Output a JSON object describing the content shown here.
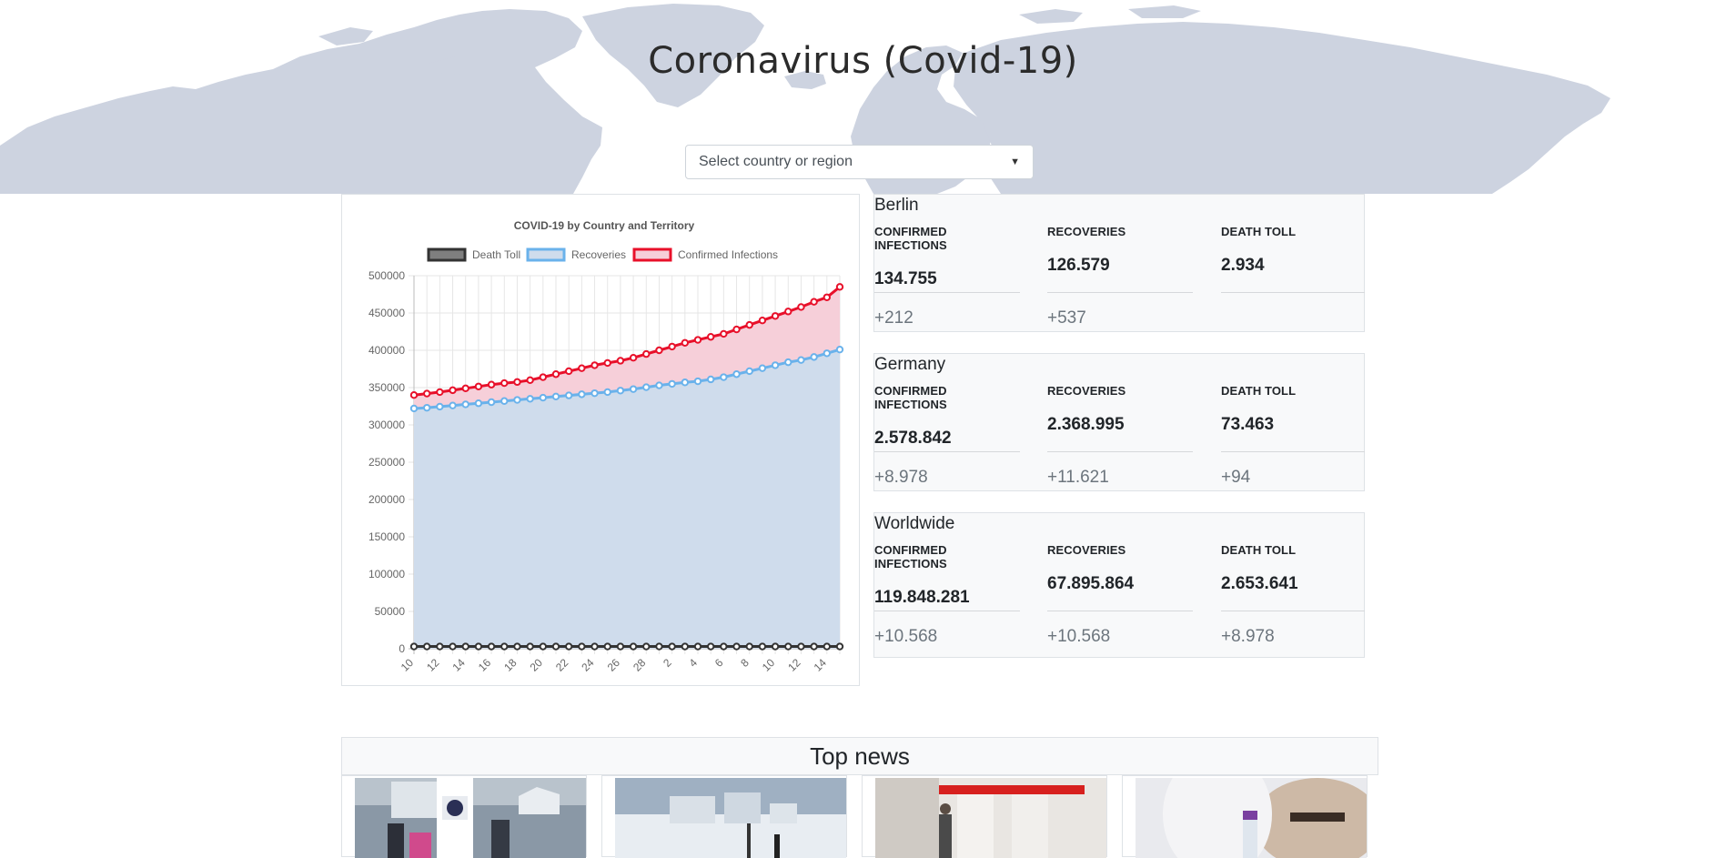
{
  "header": {
    "title": "Coronavirus (Covid-19)",
    "select_placeholder": "Select country or region"
  },
  "colors": {
    "map": "#cdd3e0",
    "death": "#333333",
    "recoveries": "#6ab2eb",
    "recoveries_fill": "#cfdcec",
    "confirmed": "#e8102a",
    "confirmed_fill": "#f6cfd9"
  },
  "chart_data": {
    "type": "line",
    "title": "COVID-19 by Country and Territory",
    "legend_position": "top",
    "grid": true,
    "ylim": [
      0,
      500000
    ],
    "y_ticks": [
      0,
      50000,
      100000,
      150000,
      200000,
      250000,
      300000,
      350000,
      400000,
      450000,
      500000
    ],
    "x_tick_labels": [
      "10",
      "12",
      "14",
      "16",
      "18",
      "20",
      "22",
      "24",
      "26",
      "28",
      "2",
      "4",
      "6",
      "8",
      "10",
      "12",
      "14"
    ],
    "x": [
      "10",
      "11",
      "12",
      "13",
      "14",
      "15",
      "16",
      "17",
      "18",
      "19",
      "20",
      "21",
      "22",
      "23",
      "24",
      "25",
      "26",
      "27",
      "28",
      "1",
      "2",
      "3",
      "4",
      "5",
      "6",
      "7",
      "8",
      "9",
      "10",
      "11",
      "12",
      "13",
      "14",
      "15"
    ],
    "series": [
      {
        "name": "Death Toll",
        "values": [
          3000,
          3000,
          3000,
          3000,
          3000,
          3000,
          3000,
          3000,
          3000,
          3000,
          3000,
          3000,
          3000,
          3000,
          3000,
          3000,
          3000,
          3000,
          3000,
          3000,
          3000,
          3000,
          3000,
          3000,
          3000,
          3000,
          3000,
          3000,
          3000,
          3000,
          3000,
          3000,
          3000,
          3000
        ]
      },
      {
        "name": "Recoveries",
        "values": [
          322000,
          323000,
          324500,
          326000,
          327500,
          329000,
          330500,
          332000,
          333500,
          335000,
          336500,
          338000,
          339500,
          341000,
          342500,
          344000,
          346000,
          348000,
          350500,
          353000,
          355000,
          357000,
          358500,
          361000,
          364000,
          368000,
          372000,
          376000,
          380000,
          384000,
          387000,
          391000,
          396000,
          401000
        ]
      },
      {
        "name": "Confirmed Infections",
        "values": [
          340000,
          342000,
          344000,
          346500,
          349000,
          351500,
          354000,
          356000,
          357500,
          360000,
          364000,
          368000,
          372000,
          376000,
          380000,
          383000,
          386000,
          390000,
          395000,
          400000,
          405000,
          410000,
          414000,
          418000,
          422000,
          428000,
          434000,
          440000,
          446000,
          452000,
          458000,
          465000,
          471000,
          485000
        ]
      }
    ]
  },
  "stats": [
    {
      "title": "Berlin",
      "labels": [
        "CONFIRMED INFECTIONS",
        "RECOVERIES",
        "DEATH TOLL"
      ],
      "values": [
        "134.755",
        "126.579",
        "2.934"
      ],
      "deltas": [
        "+212",
        "+537",
        ""
      ]
    },
    {
      "title": "Germany",
      "labels": [
        "CONFIRMED INFECTIONS",
        "RECOVERIES",
        "DEATH TOLL"
      ],
      "values": [
        "2.578.842",
        "2.368.995",
        "73.463"
      ],
      "deltas": [
        "+8.978",
        "+11.621",
        "+94"
      ]
    },
    {
      "title": "Worldwide",
      "labels": [
        "CONFIRMED INFECTIONS",
        "RECOVERIES",
        "DEATH TOLL"
      ],
      "values": [
        "119.848.281",
        "67.895.864",
        "2.653.641"
      ],
      "deltas": [
        "+10.568",
        "+10.568",
        "+8.978"
      ]
    }
  ],
  "news": {
    "title": "Top news",
    "items": [
      {
        "image": "harbor-street-mask-sign-photo"
      },
      {
        "image": "snowy-coastal-town-photo"
      },
      {
        "image": "vaccination-center-hall-photo"
      },
      {
        "image": "vaccine-vial-glove-photo"
      }
    ]
  }
}
